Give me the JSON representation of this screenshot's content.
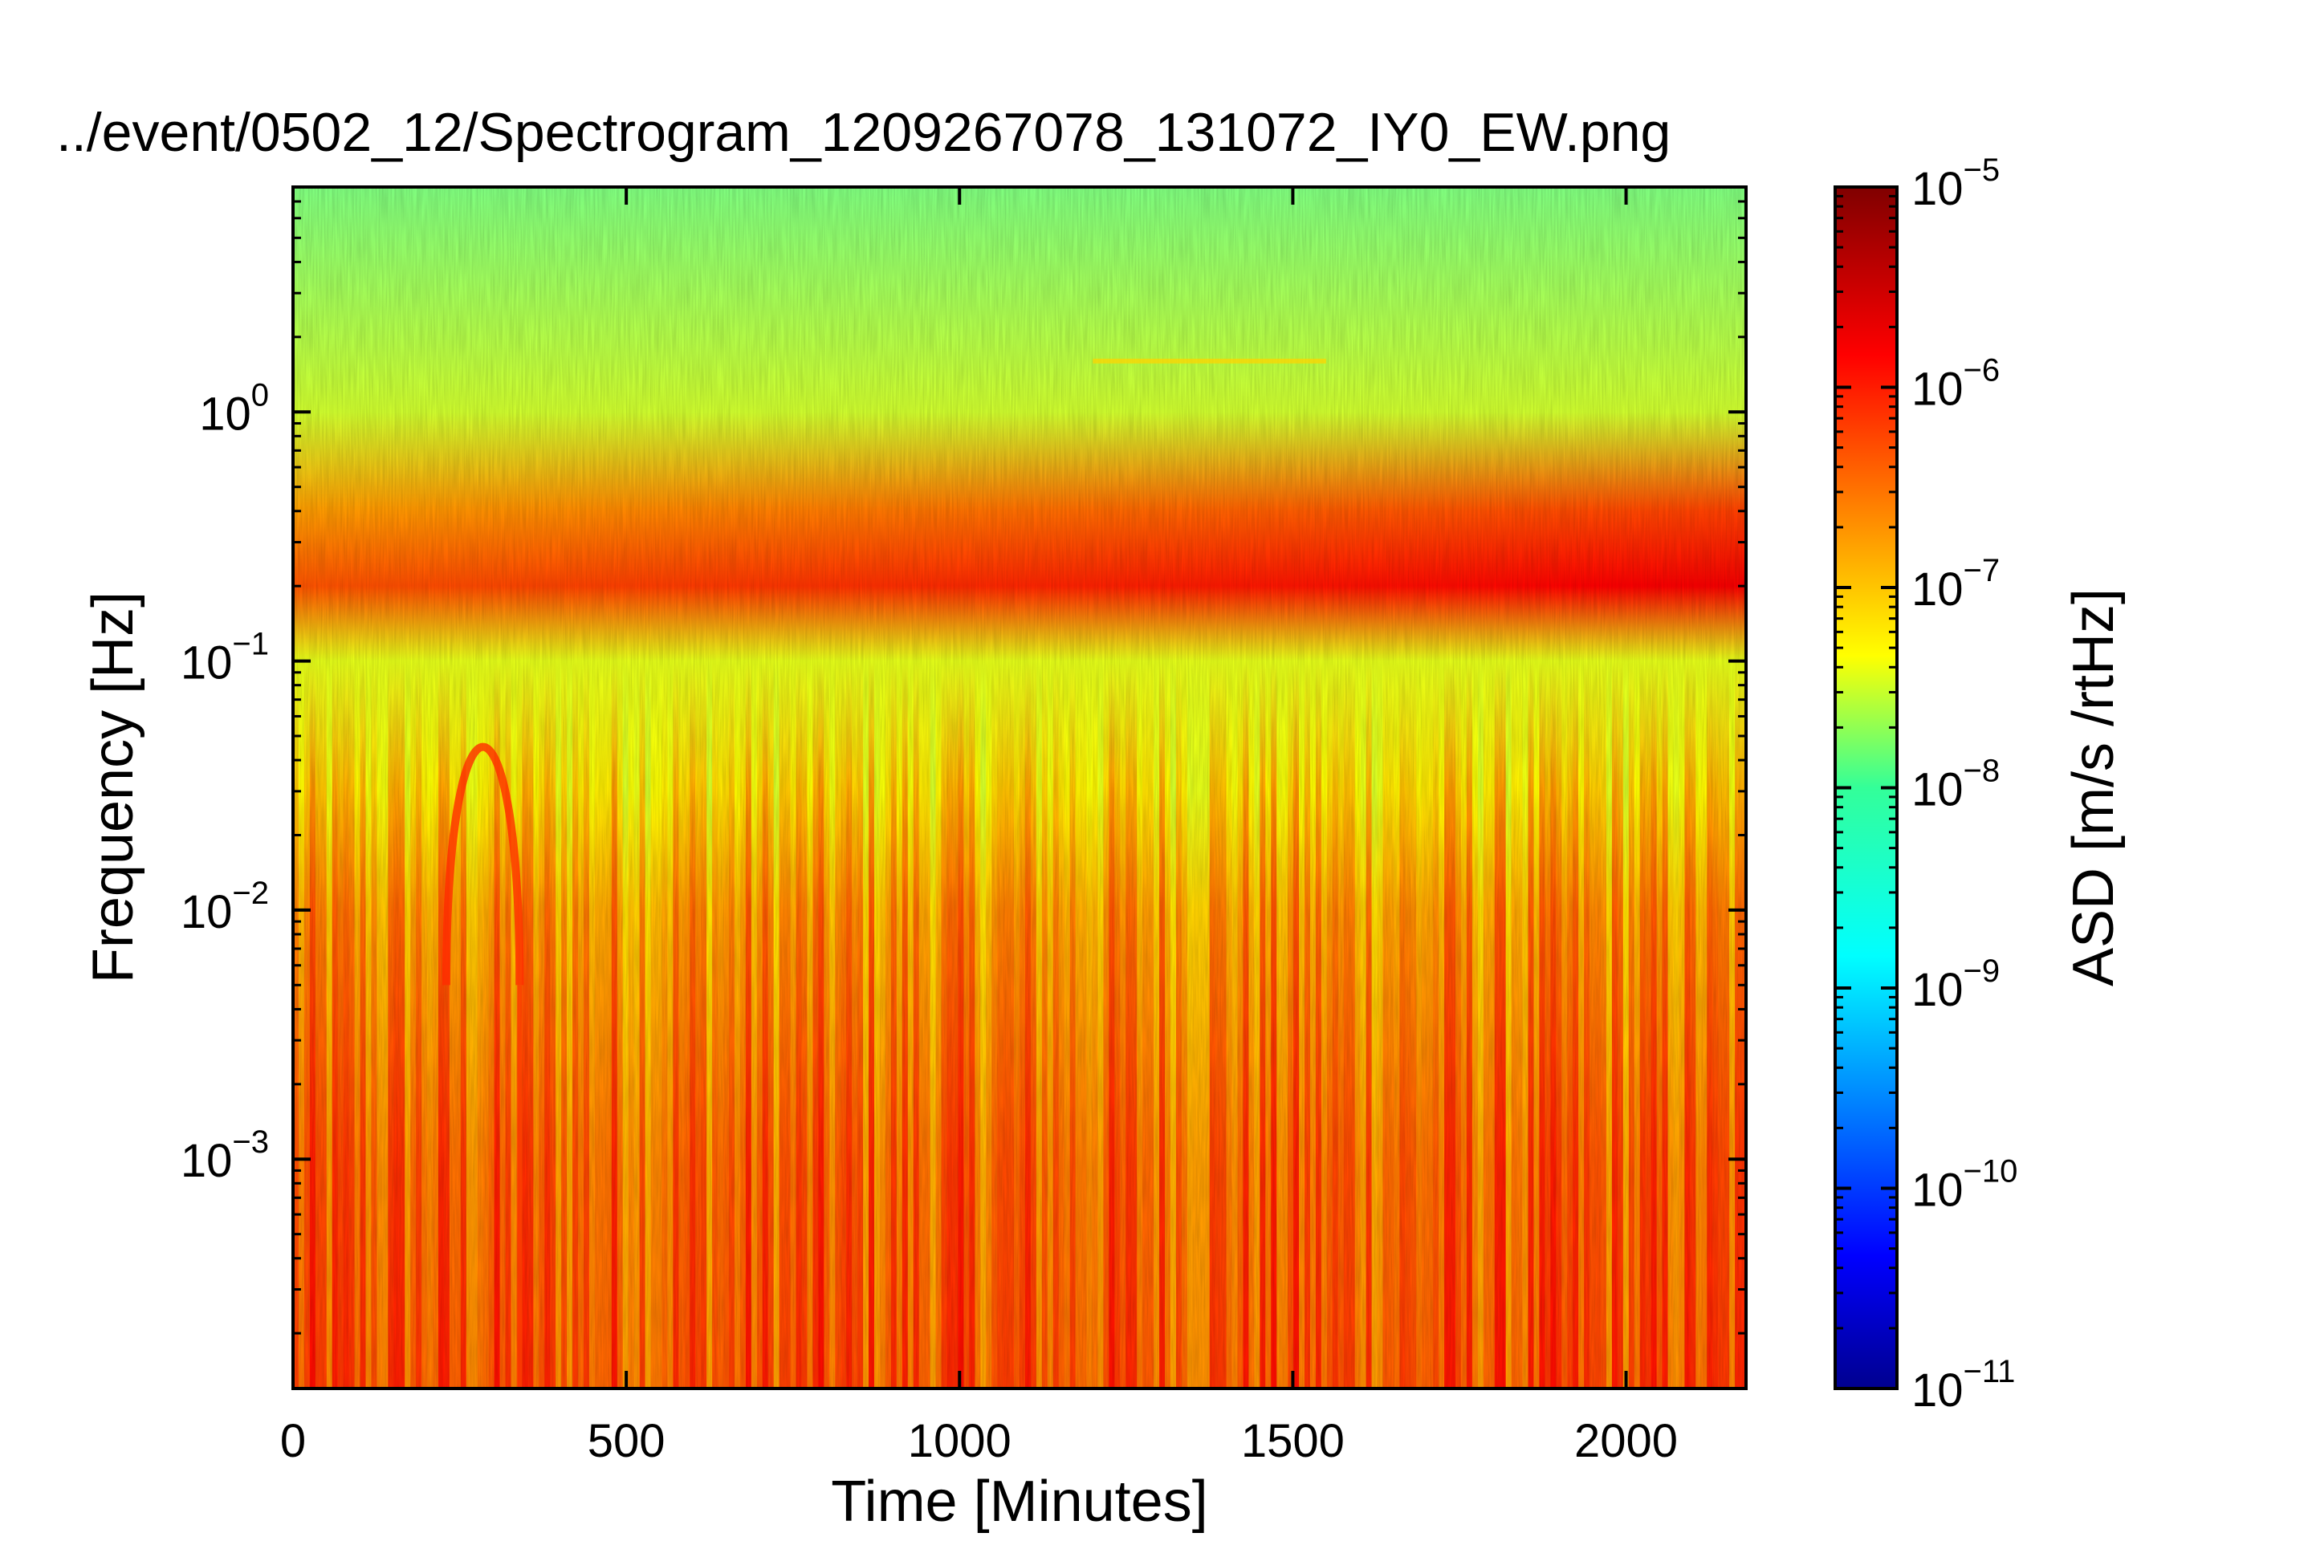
{
  "chart_data": {
    "type": "heatmap",
    "title": "../event/0502_12/Spectrogram_1209267078_131072_IY0_EW.png",
    "xlabel": "Time [Minutes]",
    "ylabel": "Frequency [Hz]",
    "xlim": [
      0,
      2180
    ],
    "ylim": [
      0.00012,
      8
    ],
    "yscale": "log",
    "xticks": [
      {
        "value": 0,
        "label": "0"
      },
      {
        "value": 500,
        "label": "500"
      },
      {
        "value": 1000,
        "label": "1000"
      },
      {
        "value": 1500,
        "label": "1500"
      },
      {
        "value": 2000,
        "label": "2000"
      }
    ],
    "yticks": [
      {
        "value": 0.001,
        "base": "10",
        "exp": "−3"
      },
      {
        "value": 0.01,
        "base": "10",
        "exp": "−2"
      },
      {
        "value": 0.1,
        "base": "10",
        "exp": "−1"
      },
      {
        "value": 1,
        "base": "10",
        "exp": "0"
      }
    ],
    "colorbar": {
      "label": "ASD [m/s /rtHz]",
      "scale": "log",
      "range": [
        1e-11,
        1e-05
      ],
      "colormap": "jet",
      "ticks": [
        {
          "value": 1e-05,
          "base": "10",
          "exp": "−5"
        },
        {
          "value": 1e-06,
          "base": "10",
          "exp": "−6"
        },
        {
          "value": 1e-07,
          "base": "10",
          "exp": "−7"
        },
        {
          "value": 1e-08,
          "base": "10",
          "exp": "−8"
        },
        {
          "value": 1e-09,
          "base": "10",
          "exp": "−9"
        },
        {
          "value": 1e-10,
          "base": "10",
          "exp": "−10"
        },
        {
          "value": 1e-11,
          "base": "10",
          "exp": "−11"
        }
      ]
    },
    "frequency_profile": [
      {
        "f": 0.00012,
        "asd": 5e-07
      },
      {
        "f": 0.001,
        "asd": 4e-07
      },
      {
        "f": 0.01,
        "asd": 2e-07
      },
      {
        "f": 0.03,
        "asd": 8e-08
      },
      {
        "f": 0.1,
        "asd": 4e-08
      },
      {
        "f": 0.2,
        "asd": 4e-07
      },
      {
        "f": 0.4,
        "asd": 1.5e-07
      },
      {
        "f": 1,
        "asd": 3e-08
      },
      {
        "f": 8,
        "asd": 1e-08
      }
    ],
    "features": [
      {
        "name": "microseism band",
        "f_range": [
          0.15,
          0.4
        ],
        "t_range": [
          0,
          2180
        ],
        "peak_asd": 1e-06
      },
      {
        "name": "event arc",
        "t_range": [
          230,
          340
        ],
        "f_range": [
          0.005,
          0.07
        ],
        "peak_asd": 1e-06
      },
      {
        "name": "narrow line",
        "t_range": [
          1200,
          1550
        ],
        "f": 1.6,
        "asd": 1e-07
      }
    ]
  }
}
